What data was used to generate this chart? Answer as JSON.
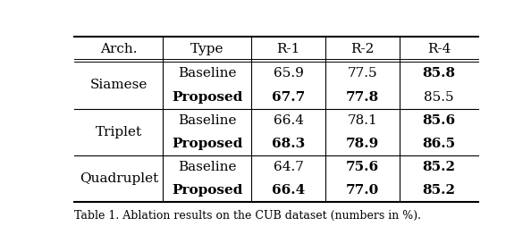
{
  "headers": [
    "Arch.",
    "Type",
    "R-1",
    "R-2",
    "R-4"
  ],
  "rows": [
    [
      "Siamese",
      "Baseline",
      "65.9",
      "77.5",
      "85.8"
    ],
    [
      "Siamese",
      "Proposed",
      "67.7",
      "77.8",
      "85.5"
    ],
    [
      "Triplet",
      "Baseline",
      "66.4",
      "78.1",
      "85.6"
    ],
    [
      "Triplet",
      "Proposed",
      "68.3",
      "78.9",
      "86.5"
    ],
    [
      "Quadruplet",
      "Baseline",
      "64.7",
      "75.6",
      "85.2"
    ],
    [
      "Quadruplet",
      "Proposed",
      "66.4",
      "77.0",
      "85.2"
    ]
  ],
  "bold_cells": {
    "0": [
      4
    ],
    "1": [
      1,
      2,
      3
    ],
    "2": [
      4
    ],
    "3": [
      1,
      2,
      3,
      4
    ],
    "4": [
      3,
      4
    ],
    "5": [
      1,
      2,
      3,
      4
    ]
  },
  "caption": "Table 1. Ablation results on the CUB dataset (numbers in %).",
  "bg_color": "#ffffff",
  "text_color": "#000000",
  "font_size": 11
}
